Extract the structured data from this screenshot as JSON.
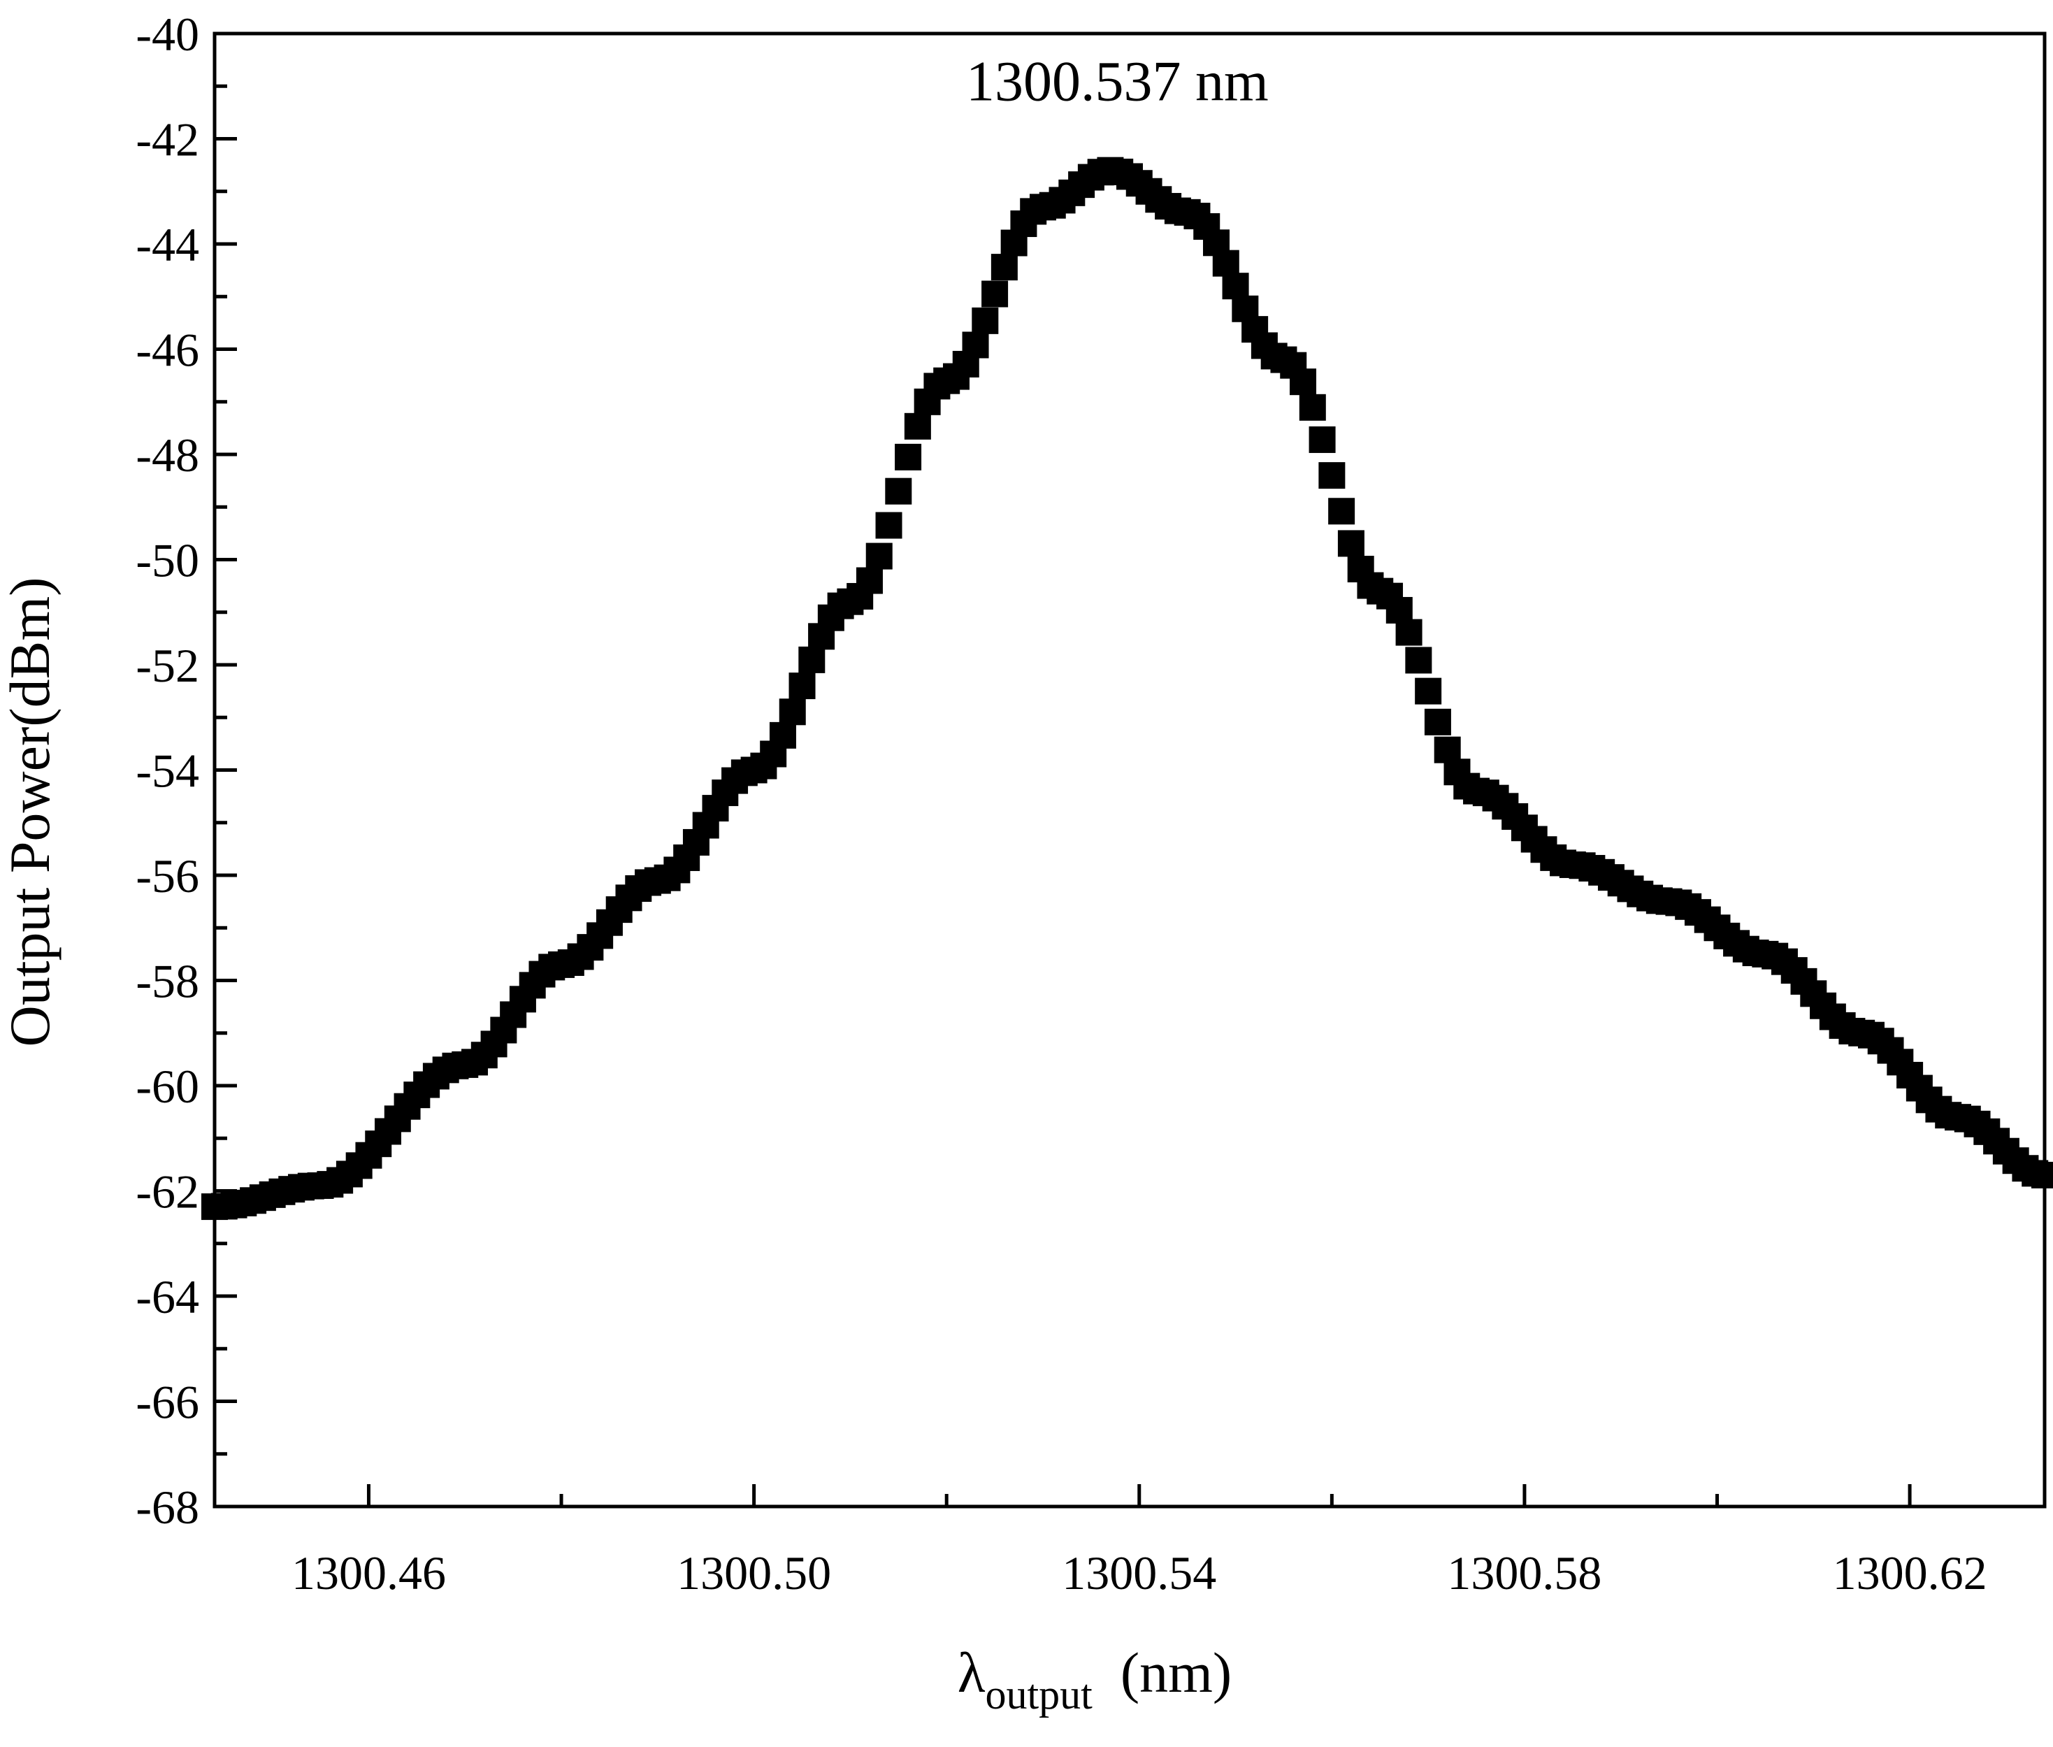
{
  "chart_data": {
    "type": "scatter",
    "title": "",
    "xlabel": {
      "main": "λ",
      "sub": "output",
      "unit": "(nm)"
    },
    "ylabel": "Output Power(dBm)",
    "xlim": [
      1300.444,
      1300.634
    ],
    "ylim": [
      -68,
      -40
    ],
    "x_ticks": [
      1300.46,
      1300.5,
      1300.54,
      1300.58,
      1300.62
    ],
    "x_tick_labels": [
      "1300.46",
      "1300.50",
      "1300.54",
      "1300.58",
      "1300.62"
    ],
    "x_minor_ticks": [
      1300.48,
      1300.52,
      1300.56,
      1300.6
    ],
    "y_ticks": [
      -40,
      -42,
      -44,
      -46,
      -48,
      -50,
      -52,
      -54,
      -56,
      -58,
      -60,
      -62,
      -64,
      -66,
      -68
    ],
    "y_tick_labels": [
      "-40",
      "-42",
      "-44",
      "-46",
      "-48",
      "-50",
      "-52",
      "-54",
      "-56",
      "-58",
      "-60",
      "-62",
      "-64",
      "-66",
      "-68"
    ],
    "y_minor_ticks": [
      -41,
      -43,
      -45,
      -47,
      -49,
      -51,
      -53,
      -55,
      -57,
      -59,
      -61,
      -63,
      -65,
      -67
    ],
    "annotation": {
      "text": "1300.537 nm",
      "x": 1300.537,
      "y": -41.4
    },
    "marker": {
      "shape": "square",
      "color": "#000000"
    },
    "key_points": [
      [
        1300.444,
        -62.3
      ],
      [
        1300.455,
        -61.9
      ],
      [
        1300.47,
        -59.6
      ],
      [
        1300.48,
        -57.7
      ],
      [
        1300.49,
        -56.1
      ],
      [
        1300.5,
        -54.0
      ],
      [
        1300.51,
        -50.8
      ],
      [
        1300.52,
        -46.6
      ],
      [
        1300.53,
        -43.3
      ],
      [
        1300.537,
        -42.6
      ],
      [
        1300.545,
        -43.4
      ],
      [
        1300.555,
        -46.2
      ],
      [
        1300.565,
        -50.6
      ],
      [
        1300.575,
        -54.4
      ],
      [
        1300.585,
        -55.8
      ],
      [
        1300.595,
        -56.5
      ],
      [
        1300.605,
        -57.5
      ],
      [
        1300.615,
        -59.0
      ],
      [
        1300.625,
        -60.6
      ],
      [
        1300.634,
        -61.7
      ]
    ],
    "sample_step": 0.001
  }
}
